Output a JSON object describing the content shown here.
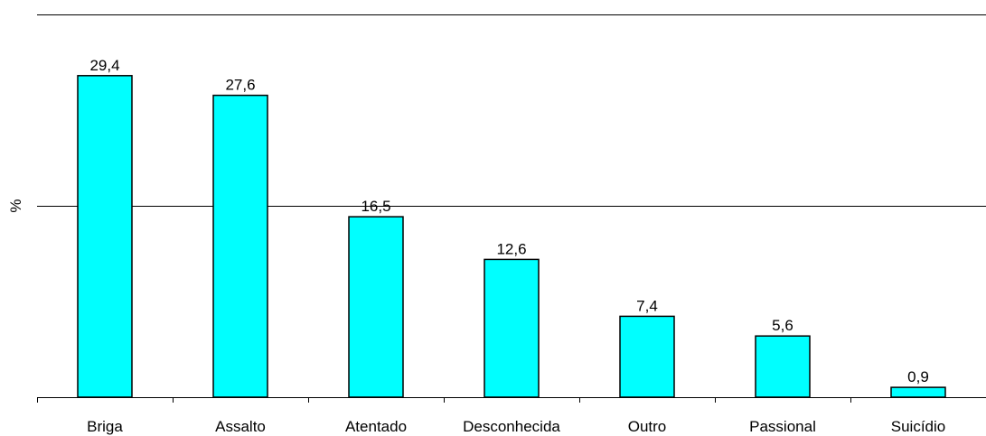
{
  "chart_data": {
    "type": "bar",
    "title": "",
    "xlabel": "",
    "ylabel": "%",
    "categories": [
      "Briga",
      "Assalto",
      "Atentado",
      "Desconhecida",
      "Outro",
      "Passional",
      "Suicídio"
    ],
    "values": [
      29.4,
      27.6,
      16.5,
      12.6,
      7.4,
      5.6,
      0.9
    ],
    "data_labels": [
      "29,4",
      "27,6",
      "16,5",
      "12,6",
      "7,4",
      "5,6",
      "0,9"
    ],
    "ylim": [
      0,
      35
    ],
    "gridlines": [
      17.5,
      35
    ],
    "grid": true,
    "legend": "none",
    "colors": {
      "bar_fill": "#00FFFF",
      "bar_stroke": "#000000",
      "axis": "#000000",
      "grid": "#000000"
    }
  }
}
